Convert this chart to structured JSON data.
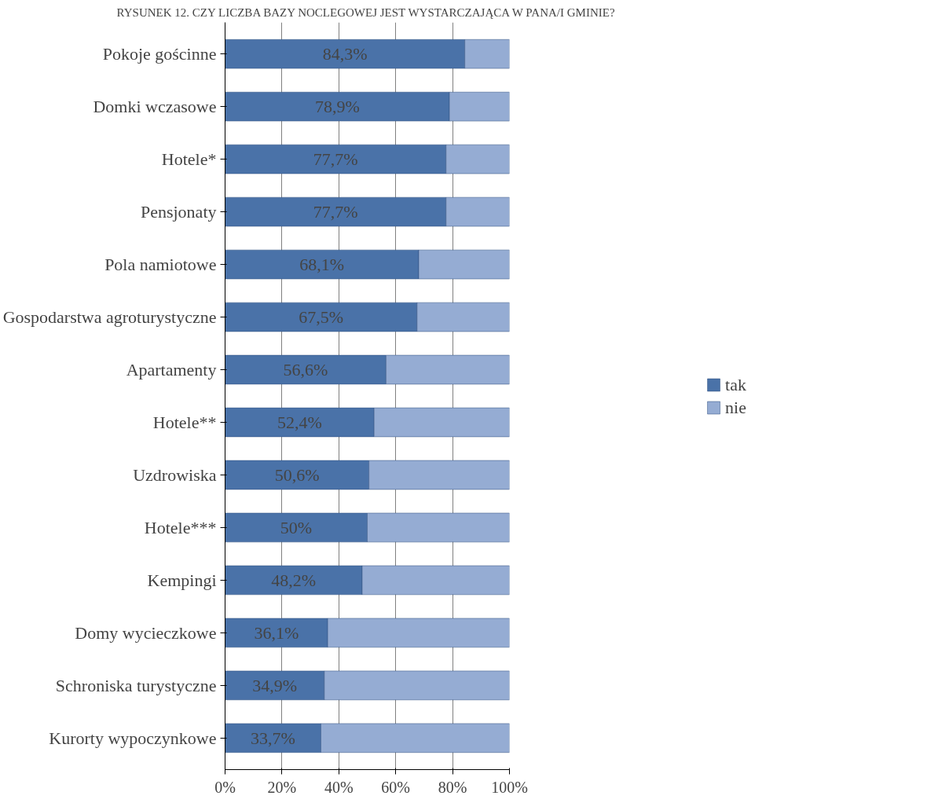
{
  "chart_data": {
    "type": "bar",
    "orientation": "horizontal",
    "stacked": true,
    "title": "RYSUNEK 12. CZY LICZBA BAZY NOCLEGOWEJ JEST WYSTARCZAJĄCA W PANA/I GMINIE?",
    "categories": [
      "Pokoje gościnne",
      "Domki wczasowe",
      "Hotele*",
      "Pensjonaty",
      "Pola namiotowe",
      "Gospodarstwa agroturystyczne",
      "Apartamenty",
      "Hotele**",
      "Uzdrowiska",
      "Hotele***",
      "Kempingi",
      "Domy wycieczkowe",
      "Schroniska turystyczne",
      "Kurorty wypoczynkowe"
    ],
    "series": [
      {
        "name": "tak",
        "color": "#4a72a8",
        "values": [
          84.3,
          78.9,
          77.7,
          77.7,
          68.1,
          67.5,
          56.6,
          52.4,
          50.6,
          50,
          48.2,
          36.1,
          34.9,
          33.7
        ],
        "value_labels": [
          "84,3%",
          "78,9%",
          "77,7%",
          "77,7%",
          "68,1%",
          "67,5%",
          "56,6%",
          "52,4%",
          "50,6%",
          "50%",
          "48,2%",
          "36,1%",
          "34,9%",
          "33,7%"
        ]
      },
      {
        "name": "nie",
        "color": "#95acd3",
        "values": [
          15.7,
          21.1,
          22.3,
          22.3,
          31.9,
          32.5,
          43.4,
          47.6,
          49.4,
          50,
          51.8,
          63.9,
          65.1,
          66.3
        ]
      }
    ],
    "xlim": [
      0,
      100
    ],
    "xticks": [
      {
        "value": 0,
        "label": "0%"
      },
      {
        "value": 20,
        "label": "20%"
      },
      {
        "value": 40,
        "label": "40%"
      },
      {
        "value": 60,
        "label": "60%"
      },
      {
        "value": 80,
        "label": "80%"
      },
      {
        "value": 100,
        "label": "100%"
      }
    ],
    "grid": "x",
    "legend": "right"
  }
}
